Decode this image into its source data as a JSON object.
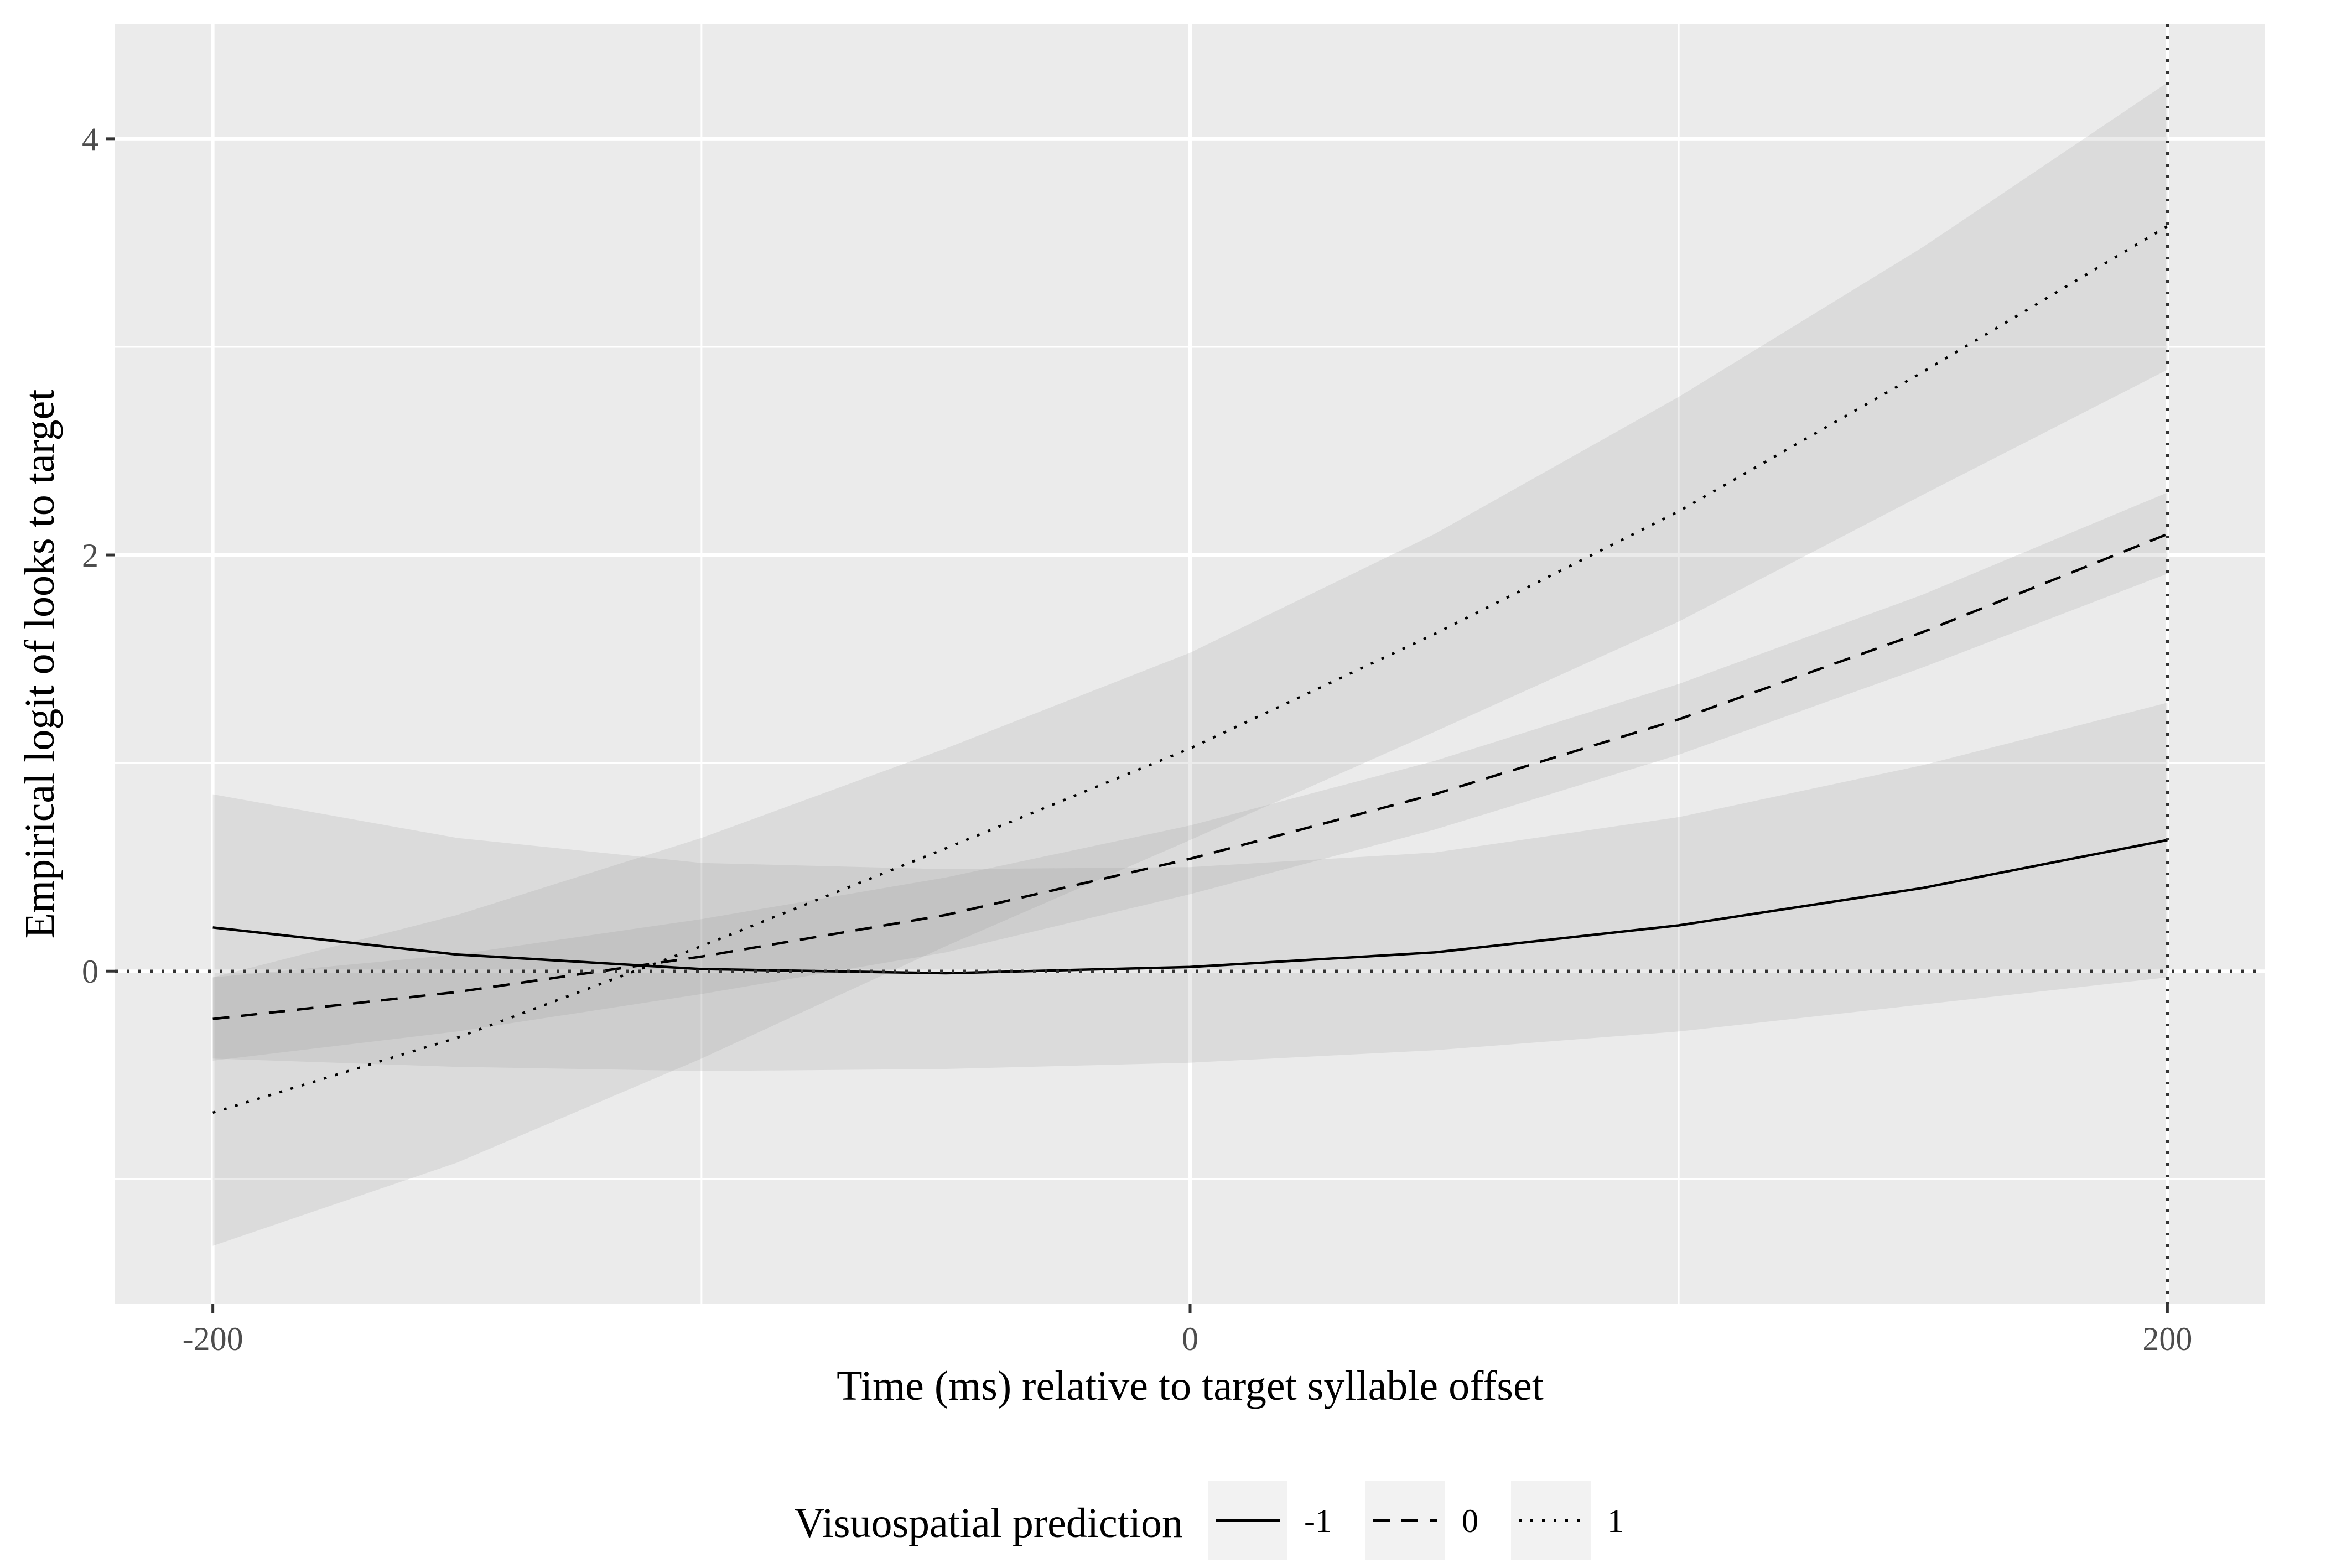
{
  "chart_data": {
    "type": "line",
    "title": "",
    "xlabel": "Time (ms) relative to target syllable offset",
    "ylabel": "Empirical logit of looks to target",
    "xlim": [
      -220,
      220
    ],
    "ylim": [
      -1.6,
      4.55
    ],
    "x_ticks": [
      -200,
      0,
      200
    ],
    "x_tick_labels": [
      "-200",
      "0",
      "200"
    ],
    "x_minor_gridlines": [
      -100,
      100
    ],
    "y_ticks": [
      0,
      2,
      4
    ],
    "y_tick_labels": [
      "0",
      "2",
      "4"
    ],
    "y_minor_gridlines": [
      -1,
      1,
      3
    ],
    "grid": true,
    "reference_lines": [
      {
        "axis": "y",
        "value": 0,
        "style": "dotted"
      },
      {
        "axis": "x",
        "value": 200,
        "style": "dotted"
      }
    ],
    "legend": {
      "title": "Visuospatial prediction",
      "position": "bottom",
      "entries": [
        {
          "label": "-1",
          "linetype": "solid"
        },
        {
          "label": "0",
          "linetype": "dashed"
        },
        {
          "label": "1",
          "linetype": "dotted"
        }
      ]
    },
    "x": [
      -200,
      -150,
      -100,
      -50,
      0,
      50,
      100,
      150,
      200
    ],
    "series": [
      {
        "name": "-1",
        "linetype": "solid",
        "values": [
          0.21,
          0.08,
          0.01,
          -0.01,
          0.02,
          0.09,
          0.22,
          0.4,
          0.63
        ],
        "ci_lower": [
          -0.42,
          -0.46,
          -0.48,
          -0.47,
          -0.44,
          -0.38,
          -0.29,
          -0.16,
          -0.03
        ],
        "ci_upper": [
          0.85,
          0.64,
          0.52,
          0.49,
          0.5,
          0.57,
          0.74,
          0.99,
          1.29
        ]
      },
      {
        "name": "0",
        "linetype": "dashed",
        "values": [
          -0.23,
          -0.1,
          0.07,
          0.27,
          0.54,
          0.85,
          1.21,
          1.63,
          2.1
        ],
        "ci_lower": [
          -0.43,
          -0.29,
          -0.11,
          0.09,
          0.37,
          0.68,
          1.04,
          1.46,
          1.91
        ],
        "ci_upper": [
          -0.03,
          0.08,
          0.25,
          0.45,
          0.7,
          1.01,
          1.38,
          1.81,
          2.3
        ]
      },
      {
        "name": "1",
        "linetype": "dotted",
        "values": [
          -0.68,
          -0.32,
          0.12,
          0.59,
          1.07,
          1.62,
          2.21,
          2.88,
          3.58
        ],
        "ci_lower": [
          -1.32,
          -0.92,
          -0.42,
          0.12,
          0.63,
          1.15,
          1.68,
          2.29,
          2.89
        ],
        "ci_upper": [
          -0.03,
          0.27,
          0.64,
          1.07,
          1.53,
          2.1,
          2.76,
          3.48,
          4.27
        ]
      }
    ]
  }
}
